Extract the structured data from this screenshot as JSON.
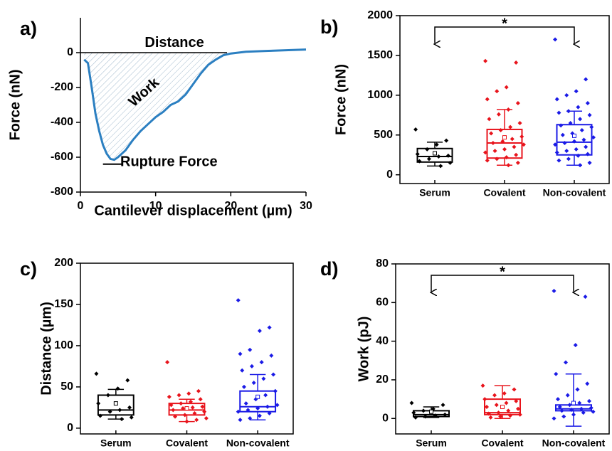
{
  "chart_data": [
    {
      "type": "line",
      "panel_label": "a)",
      "x_label": "Cantilever displacement (µm)",
      "y_label": "Force (nN)",
      "annotations": [
        "Distance",
        "Work",
        "Rupture Force"
      ],
      "color": "#2b7fc1",
      "x": [
        0.5,
        1,
        1.5,
        2,
        2.5,
        3,
        3.5,
        4,
        4.5,
        5,
        6,
        7,
        8,
        9,
        10,
        11,
        12,
        13,
        14,
        15,
        16,
        17,
        18,
        19,
        20,
        22,
        25,
        28,
        30
      ],
      "values": [
        -40,
        -60,
        -200,
        -350,
        -450,
        -530,
        -580,
        -610,
        -615,
        -600,
        -560,
        -500,
        -450,
        -410,
        -370,
        -340,
        -300,
        -280,
        -240,
        -180,
        -120,
        -70,
        -40,
        -15,
        -5,
        5,
        10,
        15,
        18
      ],
      "xlim": [
        0,
        30
      ],
      "xticks": [
        0,
        10,
        20,
        30
      ],
      "ylim": [
        -800,
        200
      ],
      "yticks": [
        -800,
        -600,
        -400,
        -200,
        0
      ]
    },
    {
      "type": "box",
      "panel_label": "b)",
      "y_label": "Force (nN)",
      "categories": [
        "Serum",
        "Covalent",
        "Non-covalent"
      ],
      "significance": {
        "label": "*",
        "between": [
          "Serum",
          "Non-covalent"
        ]
      },
      "ylim": [
        -110,
        2000
      ],
      "yticks": [
        0,
        500,
        1000,
        1500,
        2000
      ],
      "boxes": [
        {
          "color": "#000000",
          "whisker_low": 110,
          "q1": 160,
          "median": 230,
          "q3": 330,
          "whisker_high": 410,
          "mean": 270,
          "points": [
            570,
            430,
            380,
            320,
            260,
            240,
            230,
            200,
            170,
            150,
            110
          ]
        },
        {
          "color": "#e8141c",
          "whisker_low": 120,
          "q1": 210,
          "median": 400,
          "q3": 570,
          "whisker_high": 820,
          "mean": 470,
          "points": [
            1430,
            1410,
            1100,
            1050,
            950,
            900,
            820,
            760,
            700,
            650,
            600,
            560,
            520,
            480,
            450,
            420,
            400,
            380,
            350,
            320,
            300,
            280,
            250,
            220,
            200,
            180,
            150,
            120
          ]
        },
        {
          "color": "#1a1ae6",
          "whisker_low": 120,
          "q1": 250,
          "median": 410,
          "q3": 630,
          "whisker_high": 800,
          "mean": 490,
          "points": [
            1700,
            1200,
            1050,
            1000,
            950,
            900,
            850,
            800,
            780,
            750,
            700,
            650,
            620,
            600,
            560,
            520,
            500,
            470,
            440,
            420,
            400,
            380,
            350,
            320,
            300,
            280,
            260,
            240,
            200,
            180,
            150,
            120
          ]
        }
      ]
    },
    {
      "type": "box",
      "panel_label": "c)",
      "y_label": "Distance (µm)",
      "categories": [
        "Serum",
        "Covalent",
        "Non-covalent"
      ],
      "ylim": [
        -7,
        200
      ],
      "yticks": [
        0,
        50,
        100,
        150,
        200
      ],
      "boxes": [
        {
          "color": "#000000",
          "whisker_low": 11,
          "q1": 16,
          "median": 22,
          "q3": 40,
          "whisker_high": 47,
          "mean": 30,
          "points": [
            66,
            58,
            48,
            40,
            30,
            25,
            22,
            20,
            15,
            13,
            11
          ]
        },
        {
          "color": "#e8141c",
          "whisker_low": 8,
          "q1": 16,
          "median": 22,
          "q3": 30,
          "whisker_high": 35,
          "mean": 24,
          "points": [
            80,
            45,
            42,
            40,
            38,
            35,
            32,
            30,
            28,
            26,
            25,
            24,
            22,
            20,
            18,
            16,
            14,
            12,
            10,
            8
          ]
        },
        {
          "color": "#1a1ae6",
          "whisker_low": 10,
          "q1": 20,
          "median": 26,
          "q3": 45,
          "whisker_high": 65,
          "mean": 38,
          "points": [
            155,
            122,
            118,
            95,
            90,
            88,
            80,
            75,
            70,
            65,
            60,
            55,
            50,
            45,
            40,
            35,
            30,
            28,
            26,
            24,
            22,
            20,
            18,
            15,
            12,
            10
          ]
        }
      ]
    },
    {
      "type": "box",
      "panel_label": "d)",
      "y_label": "Work (pJ)",
      "categories": [
        "Serum",
        "Covalent",
        "Non-covalent"
      ],
      "significance": {
        "label": "*",
        "between": [
          "Serum",
          "Non-covalent"
        ]
      },
      "ylim": [
        -8,
        80
      ],
      "yticks": [
        0,
        20,
        40,
        60,
        80
      ],
      "boxes": [
        {
          "color": "#000000",
          "whisker_low": 0.5,
          "q1": 1,
          "median": 2,
          "q3": 4,
          "whisker_high": 6,
          "mean": 3.5,
          "points": [
            8,
            7,
            5,
            4,
            3,
            2,
            1.5,
            1,
            0.5
          ]
        },
        {
          "color": "#e8141c",
          "whisker_low": 0,
          "q1": 2,
          "median": 3,
          "q3": 10,
          "whisker_high": 17,
          "mean": 6,
          "points": [
            17,
            15,
            13,
            12,
            10,
            9,
            8,
            7,
            6,
            5,
            4,
            3,
            2.5,
            2,
            1.5,
            1,
            0.5
          ]
        },
        {
          "color": "#1a1ae6",
          "whisker_low": -4,
          "q1": 4,
          "median": 5,
          "q3": 7,
          "whisker_high": 23,
          "mean": 8,
          "points": [
            66,
            63,
            38,
            29,
            23,
            18,
            15,
            12,
            10,
            9,
            8,
            7,
            6,
            5.5,
            5,
            4.5,
            4,
            3.5,
            3,
            2,
            1,
            0
          ]
        }
      ]
    }
  ]
}
